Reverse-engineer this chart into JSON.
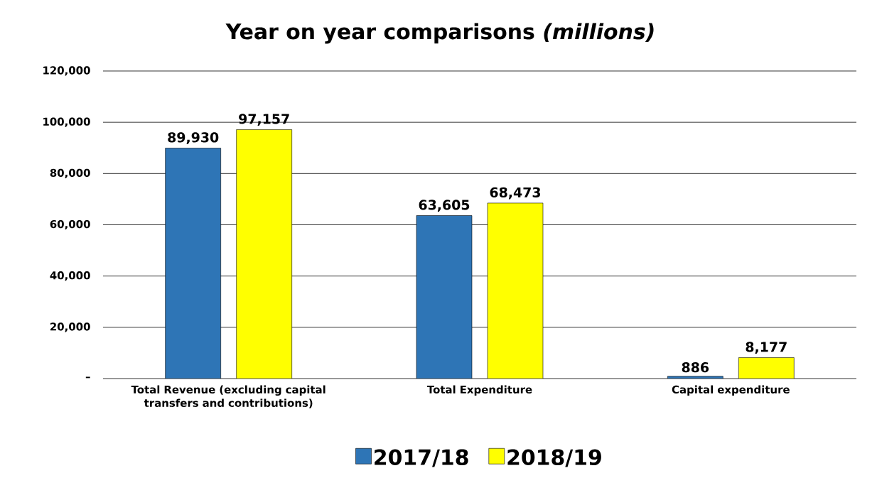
{
  "chart_data": {
    "type": "bar",
    "title": "Year on year comparisons *(millions)*",
    "categories": [
      "Total Revenue (excluding capital transfers and contributions)",
      "Total Expenditure",
      "Capital expenditure"
    ],
    "series": [
      {
        "name": "2017/18",
        "color": "#2e75b6",
        "values": [
          89930,
          63605,
          886
        ],
        "value_labels": [
          "89,930",
          "63,605",
          "886"
        ]
      },
      {
        "name": "2018/19",
        "color": "#ffff00",
        "values": [
          97157,
          68473,
          8177
        ],
        "value_labels": [
          "97,157",
          "68,473",
          "8,177"
        ]
      }
    ],
    "ylim": [
      0,
      120000
    ],
    "yticks": [
      {
        "value": 0,
        "label": "–"
      },
      {
        "value": 20000,
        "label": "20,000"
      },
      {
        "value": 40000,
        "label": "40,000"
      },
      {
        "value": 60000,
        "label": "60,000"
      },
      {
        "value": 80000,
        "label": "80,000"
      },
      {
        "value": 100000,
        "label": "100,000"
      },
      {
        "value": 120000,
        "label": "120,000"
      }
    ],
    "grid": "y",
    "legend": "bottom"
  }
}
